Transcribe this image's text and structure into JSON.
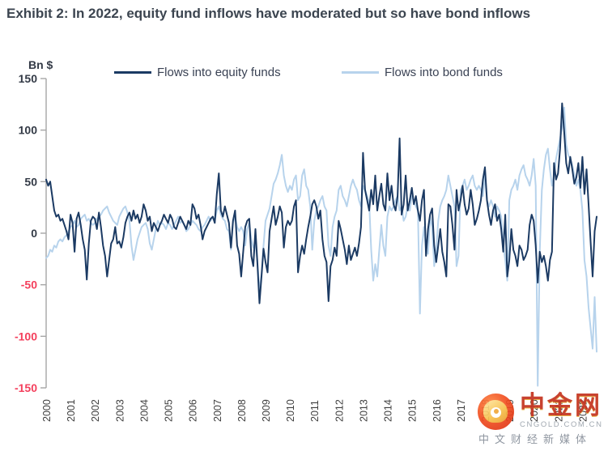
{
  "title": "Exhibit 2: In 2022, equity fund inflows have moderated but so have bond inflows",
  "axis": {
    "unit_label": "Bn $",
    "y_ticks": [
      150,
      100,
      50,
      0,
      -50,
      -100,
      -150
    ],
    "x_tick_labels": [
      "2000",
      "2001",
      "2002",
      "2003",
      "2004",
      "2005",
      "2006",
      "2007",
      "2008",
      "2009",
      "2010",
      "2011",
      "2012",
      "2013",
      "2014",
      "2015",
      "2016",
      "2017",
      "2018",
      "2019",
      "2020",
      "2021",
      "2022"
    ]
  },
  "legend": [
    {
      "label": "Flows into equity funds",
      "color": "#1b3a63"
    },
    {
      "label": "Flows into bond funds",
      "color": "#b7d3ec"
    }
  ],
  "colors": {
    "equity_line": "#1b3a63",
    "bond_line": "#b7d3ec",
    "axis_line": "#a6a6a6",
    "y_label_positive": "#333a46",
    "y_label_negative": "#f43f5c",
    "x_label": "#3f3f3f",
    "title_text": "#3c4550"
  },
  "watermark": {
    "brand_cn": "中金网",
    "brand_domain": "CNGOLD.COM.CN",
    "tagline_cn": "中文财经新媒体"
  },
  "chart_data": {
    "type": "line",
    "title": "Exhibit 2: In 2022, equity fund inflows have moderated but so have bond inflows",
    "ylabel": "Bn $",
    "ylim": [
      -150,
      150
    ],
    "grid": false,
    "legend_position": "top-center",
    "x_start": "2000-01",
    "x_end": "2022-08",
    "frequency": "monthly",
    "x_tick_labels": [
      "2000",
      "2001",
      "2002",
      "2003",
      "2004",
      "2005",
      "2006",
      "2007",
      "2008",
      "2009",
      "2010",
      "2011",
      "2012",
      "2013",
      "2014",
      "2015",
      "2016",
      "2017",
      "2018",
      "2019",
      "2020",
      "2021",
      "2022"
    ],
    "series": [
      {
        "name": "Flows into equity funds",
        "color": "#1b3a63",
        "values": [
          52,
          46,
          50,
          36,
          22,
          16,
          18,
          12,
          14,
          8,
          2,
          -6,
          18,
          10,
          -18,
          14,
          20,
          8,
          -6,
          -16,
          -45,
          -10,
          12,
          16,
          14,
          4,
          20,
          6,
          -12,
          -22,
          -42,
          -26,
          -10,
          -6,
          6,
          -10,
          -8,
          -14,
          -4,
          10,
          16,
          20,
          12,
          22,
          14,
          18,
          10,
          16,
          28,
          22,
          12,
          16,
          2,
          10,
          6,
          2,
          8,
          12,
          18,
          14,
          10,
          18,
          14,
          6,
          4,
          10,
          16,
          12,
          8,
          4,
          12,
          8,
          28,
          24,
          14,
          18,
          8,
          -6,
          2,
          6,
          10,
          14,
          16,
          10,
          38,
          58,
          22,
          16,
          26,
          18,
          10,
          -14,
          12,
          22,
          -12,
          -20,
          -42,
          -18,
          6,
          12,
          14,
          -22,
          -32,
          4,
          -30,
          -68,
          -42,
          -15,
          -28,
          -38,
          2,
          14,
          26,
          8,
          16,
          26,
          20,
          -14,
          6,
          12,
          8,
          12,
          26,
          32,
          -38,
          -22,
          -12,
          -20,
          -6,
          6,
          16,
          28,
          32,
          26,
          14,
          22,
          -6,
          -22,
          -28,
          -66,
          -32,
          -26,
          -14,
          -22,
          12,
          4,
          -6,
          -16,
          -30,
          -12,
          -26,
          -20,
          -14,
          -22,
          -10,
          6,
          78,
          42,
          32,
          22,
          42,
          28,
          56,
          22,
          36,
          48,
          28,
          22,
          58,
          32,
          46,
          28,
          22,
          36,
          92,
          18,
          28,
          56,
          22,
          32,
          44,
          28,
          36,
          22,
          12,
          32,
          42,
          -22,
          4,
          18,
          24,
          -12,
          -28,
          -12,
          4,
          -18,
          -28,
          -42,
          28,
          26,
          8,
          -16,
          42,
          22,
          32,
          46,
          28,
          18,
          24,
          42,
          28,
          8,
          14,
          22,
          32,
          52,
          64,
          32,
          18,
          8,
          22,
          28,
          12,
          18,
          4,
          -18,
          18,
          -42,
          -26,
          4,
          -16,
          -22,
          -32,
          -12,
          -16,
          -26,
          -22,
          -16,
          8,
          18,
          12,
          -12,
          -48,
          -18,
          -28,
          -22,
          -32,
          -46,
          -26,
          -18,
          68,
          52,
          58,
          82,
          126,
          98,
          68,
          58,
          74,
          62,
          48,
          54,
          68,
          44,
          74,
          38,
          62,
          28,
          -8,
          -42,
          2,
          16
        ]
      },
      {
        "name": "Flows into bond funds",
        "color": "#b7d3ec",
        "values": [
          -24,
          -22,
          -16,
          -18,
          -12,
          -14,
          -8,
          -6,
          -8,
          -4,
          -2,
          2,
          6,
          8,
          12,
          6,
          8,
          14,
          16,
          18,
          12,
          14,
          10,
          8,
          10,
          14,
          16,
          18,
          22,
          24,
          26,
          20,
          16,
          12,
          10,
          8,
          16,
          20,
          24,
          26,
          20,
          12,
          -12,
          -26,
          -16,
          -6,
          0,
          6,
          8,
          10,
          4,
          -10,
          -16,
          -6,
          4,
          12,
          8,
          10,
          8,
          4,
          10,
          8,
          4,
          8,
          12,
          16,
          10,
          12,
          8,
          2,
          4,
          8,
          12,
          10,
          8,
          4,
          2,
          6,
          8,
          12,
          16,
          12,
          16,
          12,
          22,
          26,
          18,
          14,
          12,
          4,
          2,
          -16,
          10,
          16,
          6,
          2,
          6,
          2,
          -12,
          4,
          10,
          -6,
          -14,
          -10,
          -28,
          -56,
          -40,
          -12,
          12,
          18,
          24,
          36,
          48,
          52,
          58,
          66,
          76,
          56,
          46,
          40,
          46,
          42,
          52,
          56,
          32,
          36,
          56,
          62,
          46,
          42,
          26,
          -16,
          12,
          22,
          26,
          32,
          36,
          26,
          22,
          -12,
          -22,
          6,
          16,
          22,
          42,
          46,
          36,
          32,
          26,
          36,
          46,
          52,
          46,
          42,
          32,
          26,
          46,
          42,
          36,
          30,
          -16,
          -46,
          -30,
          -42,
          -16,
          8,
          -12,
          -22,
          16,
          26,
          22,
          26,
          32,
          36,
          22,
          26,
          12,
          16,
          26,
          22,
          36,
          32,
          26,
          22,
          -78,
          -12,
          6,
          -16,
          -20,
          16,
          6,
          -32,
          -16,
          12,
          26,
          32,
          36,
          42,
          56,
          46,
          36,
          26,
          -32,
          -22,
          42,
          46,
          52,
          42,
          46,
          52,
          56,
          46,
          42,
          46,
          42,
          36,
          56,
          32,
          26,
          32,
          26,
          16,
          26,
          22,
          16,
          -12,
          -26,
          -46,
          32,
          42,
          46,
          52,
          42,
          56,
          62,
          66,
          56,
          52,
          46,
          56,
          72,
          46,
          -148,
          -18,
          42,
          62,
          76,
          82,
          62,
          46,
          56,
          72,
          82,
          92,
          102,
          122,
          86,
          76,
          72,
          66,
          56,
          46,
          52,
          42,
          22,
          -26,
          -42,
          -72,
          -92,
          -112,
          -62,
          -115
        ]
      }
    ]
  }
}
